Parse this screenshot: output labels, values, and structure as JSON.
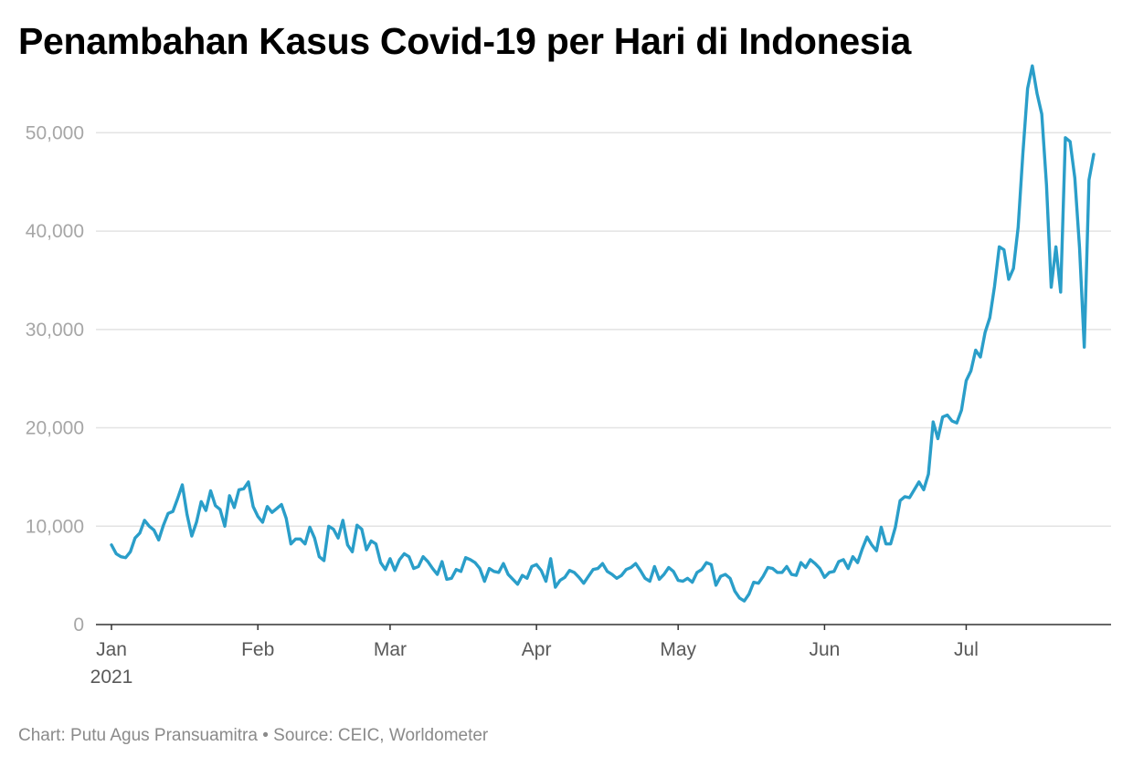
{
  "title": "Penambahan Kasus Covid-19 per Hari di Indonesia",
  "footer": {
    "credit": "Chart: Putu Agus Pransuamitra",
    "separator": " • ",
    "source": "Source: CEIC, Worldometer"
  },
  "colors": {
    "line": "#2a9ec9",
    "grid": "#e3e3e3",
    "axis": "#333333"
  },
  "chart_data": {
    "type": "line",
    "title": "Penambahan Kasus Covid-19 per Hari di Indonesia",
    "xlabel": "",
    "ylabel": "",
    "ylim": [
      0,
      57000
    ],
    "yticks": [
      0,
      10000,
      20000,
      30000,
      40000,
      50000
    ],
    "ytick_labels": [
      "0",
      "10,000",
      "20,000",
      "30,000",
      "40,000",
      "50,000"
    ],
    "xticks": [
      {
        "date": "2021-01-01",
        "label": "Jan",
        "sublabel": "2021"
      },
      {
        "date": "2021-02-01",
        "label": "Feb",
        "sublabel": ""
      },
      {
        "date": "2021-03-01",
        "label": "Mar",
        "sublabel": ""
      },
      {
        "date": "2021-04-01",
        "label": "Apr",
        "sublabel": ""
      },
      {
        "date": "2021-05-01",
        "label": "May",
        "sublabel": ""
      },
      {
        "date": "2021-06-01",
        "label": "Jun",
        "sublabel": ""
      },
      {
        "date": "2021-07-01",
        "label": "Jul",
        "sublabel": ""
      }
    ],
    "grid": true,
    "legend": "none",
    "x": [
      "2021-01-01",
      "2021-01-02",
      "2021-01-03",
      "2021-01-04",
      "2021-01-05",
      "2021-01-06",
      "2021-01-07",
      "2021-01-08",
      "2021-01-09",
      "2021-01-10",
      "2021-01-11",
      "2021-01-12",
      "2021-01-13",
      "2021-01-14",
      "2021-01-15",
      "2021-01-16",
      "2021-01-17",
      "2021-01-18",
      "2021-01-19",
      "2021-01-20",
      "2021-01-21",
      "2021-01-22",
      "2021-01-23",
      "2021-01-24",
      "2021-01-25",
      "2021-01-26",
      "2021-01-27",
      "2021-01-28",
      "2021-01-29",
      "2021-01-30",
      "2021-01-31",
      "2021-02-01",
      "2021-02-02",
      "2021-02-03",
      "2021-02-04",
      "2021-02-05",
      "2021-02-06",
      "2021-02-07",
      "2021-02-08",
      "2021-02-09",
      "2021-02-10",
      "2021-02-11",
      "2021-02-12",
      "2021-02-13",
      "2021-02-14",
      "2021-02-15",
      "2021-02-16",
      "2021-02-17",
      "2021-02-18",
      "2021-02-19",
      "2021-02-20",
      "2021-02-21",
      "2021-02-22",
      "2021-02-23",
      "2021-02-24",
      "2021-02-25",
      "2021-02-26",
      "2021-02-27",
      "2021-02-28",
      "2021-03-01",
      "2021-03-02",
      "2021-03-03",
      "2021-03-04",
      "2021-03-05",
      "2021-03-06",
      "2021-03-07",
      "2021-03-08",
      "2021-03-09",
      "2021-03-10",
      "2021-03-11",
      "2021-03-12",
      "2021-03-13",
      "2021-03-14",
      "2021-03-15",
      "2021-03-16",
      "2021-03-17",
      "2021-03-18",
      "2021-03-19",
      "2021-03-20",
      "2021-03-21",
      "2021-03-22",
      "2021-03-23",
      "2021-03-24",
      "2021-03-25",
      "2021-03-26",
      "2021-03-27",
      "2021-03-28",
      "2021-03-29",
      "2021-03-30",
      "2021-03-31",
      "2021-04-01",
      "2021-04-02",
      "2021-04-03",
      "2021-04-04",
      "2021-04-05",
      "2021-04-06",
      "2021-04-07",
      "2021-04-08",
      "2021-04-09",
      "2021-04-10",
      "2021-04-11",
      "2021-04-12",
      "2021-04-13",
      "2021-04-14",
      "2021-04-15",
      "2021-04-16",
      "2021-04-17",
      "2021-04-18",
      "2021-04-19",
      "2021-04-20",
      "2021-04-21",
      "2021-04-22",
      "2021-04-23",
      "2021-04-24",
      "2021-04-25",
      "2021-04-26",
      "2021-04-27",
      "2021-04-28",
      "2021-04-29",
      "2021-04-30",
      "2021-05-01",
      "2021-05-02",
      "2021-05-03",
      "2021-05-04",
      "2021-05-05",
      "2021-05-06",
      "2021-05-07",
      "2021-05-08",
      "2021-05-09",
      "2021-05-10",
      "2021-05-11",
      "2021-05-12",
      "2021-05-13",
      "2021-05-14",
      "2021-05-15",
      "2021-05-16",
      "2021-05-17",
      "2021-05-18",
      "2021-05-19",
      "2021-05-20",
      "2021-05-21",
      "2021-05-22",
      "2021-05-23",
      "2021-05-24",
      "2021-05-25",
      "2021-05-26",
      "2021-05-27",
      "2021-05-28",
      "2021-05-29",
      "2021-05-30",
      "2021-05-31",
      "2021-06-01",
      "2021-06-02",
      "2021-06-03",
      "2021-06-04",
      "2021-06-05",
      "2021-06-06",
      "2021-06-07",
      "2021-06-08",
      "2021-06-09",
      "2021-06-10",
      "2021-06-11",
      "2021-06-12",
      "2021-06-13",
      "2021-06-14",
      "2021-06-15",
      "2021-06-16",
      "2021-06-17",
      "2021-06-18",
      "2021-06-19",
      "2021-06-20",
      "2021-06-21",
      "2021-06-22",
      "2021-06-23",
      "2021-06-24",
      "2021-06-25",
      "2021-06-26",
      "2021-06-27",
      "2021-06-28",
      "2021-06-29",
      "2021-06-30",
      "2021-07-01",
      "2021-07-02",
      "2021-07-03",
      "2021-07-04",
      "2021-07-05",
      "2021-07-06",
      "2021-07-07",
      "2021-07-08",
      "2021-07-09",
      "2021-07-10",
      "2021-07-11",
      "2021-07-12",
      "2021-07-13",
      "2021-07-14",
      "2021-07-15",
      "2021-07-16",
      "2021-07-17",
      "2021-07-18",
      "2021-07-19",
      "2021-07-20",
      "2021-07-21",
      "2021-07-22",
      "2021-07-23",
      "2021-07-24",
      "2021-07-25",
      "2021-07-26",
      "2021-07-27",
      "2021-07-28"
    ],
    "series": [
      {
        "name": "",
        "values": [
          8100,
          7200,
          6900,
          6800,
          7400,
          8800,
          9300,
          10600,
          10000,
          9600,
          8600,
          10100,
          11300,
          11500,
          12800,
          14200,
          11200,
          9000,
          10400,
          12500,
          11600,
          13600,
          12100,
          11700,
          10000,
          13100,
          11900,
          13700,
          13800,
          14500,
          12000,
          11000,
          10400,
          12000,
          11400,
          11800,
          12200,
          10800,
          8200,
          8700,
          8700,
          8200,
          9900,
          8800,
          6900,
          6500,
          10000,
          9700,
          8800,
          10600,
          8100,
          7400,
          10100,
          9700,
          7600,
          8500,
          8200,
          6300,
          5600,
          6700,
          5500,
          6600,
          7200,
          6900,
          5700,
          5900,
          6900,
          6400,
          5700,
          5100,
          6400,
          4600,
          4700,
          5600,
          5400,
          6800,
          6600,
          6300,
          5700,
          4400,
          5700,
          5400,
          5300,
          6200,
          5100,
          4600,
          4100,
          5000,
          4700,
          5900,
          6100,
          5500,
          4400,
          6700,
          3800,
          4500,
          4800,
          5500,
          5300,
          4800,
          4200,
          4900,
          5600,
          5700,
          6200,
          5400,
          5100,
          4700,
          5000,
          5600,
          5800,
          6200,
          5500,
          4700,
          4400,
          5900,
          4600,
          5100,
          5800,
          5400,
          4500,
          4400,
          4700,
          4300,
          5300,
          5600,
          6300,
          6100,
          4000,
          4900,
          5100,
          4700,
          3400,
          2700,
          2400,
          3100,
          4300,
          4200,
          4900,
          5800,
          5700,
          5300,
          5300,
          5900,
          5100,
          5000,
          6300,
          5800,
          6600,
          6200,
          5700,
          4800,
          5300,
          5400,
          6400,
          6600,
          5700,
          6900,
          6300,
          7700,
          8900,
          8100,
          7500,
          9900,
          8200,
          8200,
          9900,
          12600,
          13000,
          12900,
          13700,
          14500,
          13700,
          15300,
          20600,
          18900,
          21100,
          21300,
          20700,
          20500,
          21800,
          24800,
          25800,
          27900,
          27200,
          29700,
          31200,
          34400,
          38400,
          38100,
          35100,
          36200,
          40400,
          47900,
          54500,
          56800,
          54000,
          51900,
          44700,
          34300,
          38400,
          33800,
          49500,
          49100,
          45400,
          38300,
          28200,
          45200,
          47800
        ]
      }
    ]
  }
}
